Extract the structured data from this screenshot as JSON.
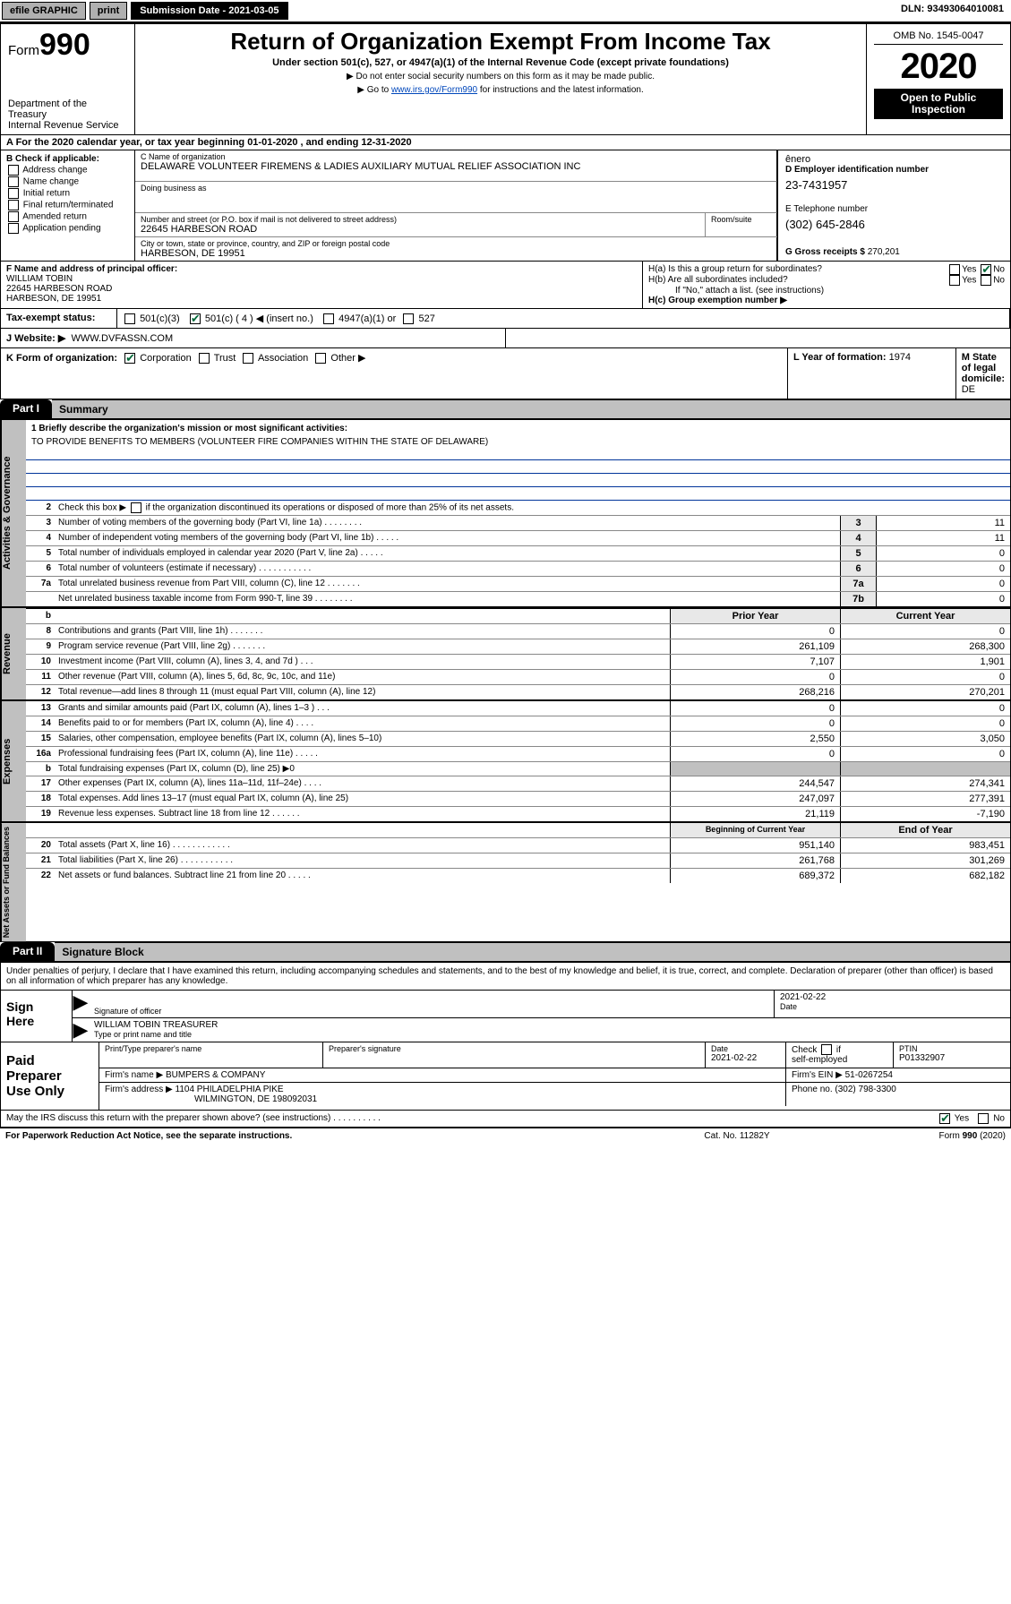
{
  "topbar": {
    "efile": "efile GRAPHIC",
    "print": "print",
    "sub_label": "Submission Date - 2021-03-05",
    "dln": "DLN: 93493064010081"
  },
  "header": {
    "form_prefix": "Form",
    "form_number": "990",
    "title": "Return of Organization Exempt From Income Tax",
    "subtitle": "Under section 501(c), 527, or 4947(a)(1) of the Internal Revenue Code (except private foundations)",
    "note1": "▶ Do not enter social security numbers on this form as it may be made public.",
    "note2_pre": "▶ Go to ",
    "note2_link": "www.irs.gov/Form990",
    "note2_post": " for instructions and the latest information.",
    "dept": "Department of the Treasury\nInternal Revenue Service",
    "omb": "OMB No. 1545-0047",
    "year": "2020",
    "inspect1": "Open to Public",
    "inspect2": "Inspection"
  },
  "lineA": "A  For the 2020 calendar year, or tax year beginning 01-01-2020     , and ending 12-31-2020",
  "boxB": {
    "hdr": "B Check if applicable:",
    "items": [
      "Address change",
      "Name change",
      "Initial return",
      "Final return/terminated",
      "Amended return",
      "Application pending"
    ]
  },
  "boxC": {
    "name_lbl": "C Name of organization",
    "name": "DELAWARE VOLUNTEER FIREMENS & LADIES AUXILIARY MUTUAL RELIEF ASSOCIATION INC",
    "dba_lbl": "Doing business as",
    "addr_lbl": "Number and street (or P.O. box if mail is not delivered to street address)",
    "addr": "22645 HARBESON ROAD",
    "room_lbl": "Room/suite",
    "city_lbl": "City or town, state or province, country, and ZIP or foreign postal code",
    "city": "HARBESON, DE  19951"
  },
  "boxD": {
    "ein_lbl": "D Employer identification number",
    "ein": "23-7431957",
    "phone_lbl": "E Telephone number",
    "phone": "(302) 645-2846",
    "gross_lbl": "G Gross receipts $ ",
    "gross": "270,201"
  },
  "boxF": {
    "lbl": "F Name and address of principal officer:",
    "name": "WILLIAM TOBIN",
    "addr": "22645 HARBESON ROAD",
    "city": "HARBESON, DE  19951"
  },
  "boxH": {
    "ha": "H(a)  Is this a group return for subordinates?",
    "hb": "H(b)  Are all subordinates included?",
    "hb_note": "If \"No,\" attach a list. (see instructions)",
    "hc": "H(c)  Group exemption number ▶",
    "yes": "Yes",
    "no": "No"
  },
  "lineI": {
    "lbl": "Tax-exempt status:",
    "c3": "501(c)(3)",
    "c_paren": "501(c) ( 4 ) ◀ (insert no.)",
    "a1": "4947(a)(1) or",
    "s527": "527"
  },
  "lineJ": {
    "lbl": "J  Website: ▶",
    "val": "WWW.DVFASSN.COM"
  },
  "lineK": {
    "lbl": "K Form of organization:",
    "corp": "Corporation",
    "trust": "Trust",
    "assoc": "Association",
    "other": "Other ▶"
  },
  "lineL": {
    "lbl": "L Year of formation: ",
    "val": "1974"
  },
  "lineM": {
    "lbl": "M State of legal domicile: ",
    "val": "DE"
  },
  "part1": {
    "tab": "Part I",
    "title": "Summary"
  },
  "summary": {
    "q1_lbl": "1  Briefly describe the organization's mission or most significant activities:",
    "q1_val": "TO PROVIDE BENEFITS TO MEMBERS (VOLUNTEER FIRE COMPANIES WITHIN THE STATE OF DELAWARE)",
    "q2": "Check this box ▶        if the organization discontinued its operations or disposed of more than 25% of its net assets.",
    "rows_simple": [
      {
        "n": "3",
        "t": "Number of voting members of the governing body (Part VI, line 1a)  .   .   .   .   .   .   .   .",
        "k": "3",
        "v": "11"
      },
      {
        "n": "4",
        "t": "Number of independent voting members of the governing body (Part VI, line 1b)   .   .   .   .   .",
        "k": "4",
        "v": "11"
      },
      {
        "n": "5",
        "t": "Total number of individuals employed in calendar year 2020 (Part V, line 2a)   .   .   .   .   .",
        "k": "5",
        "v": "0"
      },
      {
        "n": "6",
        "t": "Total number of volunteers (estimate if necessary)   .   .   .   .   .   .   .   .   .   .   .",
        "k": "6",
        "v": "0"
      },
      {
        "n": "7a",
        "t": "Total unrelated business revenue from Part VIII, column (C), line 12   .   .   .   .   .   .   .",
        "k": "7a",
        "v": "0"
      },
      {
        "n": "",
        "t": "Net unrelated business taxable income from Form 990-T, line 39   .   .   .   .   .   .   .   .",
        "k": "7b",
        "v": "0"
      }
    ],
    "pyr_hdr": {
      "py": "Prior Year",
      "cy": "Current Year"
    },
    "rev_rows": [
      {
        "n": "8",
        "t": "Contributions and grants (Part VIII, line 1h)   .   .   .   .   .   .   .",
        "py": "0",
        "cy": "0"
      },
      {
        "n": "9",
        "t": "Program service revenue (Part VIII, line 2g)   .   .   .   .   .   .   .",
        "py": "261,109",
        "cy": "268,300"
      },
      {
        "n": "10",
        "t": "Investment income (Part VIII, column (A), lines 3, 4, and 7d )   .   .   .",
        "py": "7,107",
        "cy": "1,901"
      },
      {
        "n": "11",
        "t": "Other revenue (Part VIII, column (A), lines 5, 6d, 8c, 9c, 10c, and 11e)",
        "py": "0",
        "cy": "0"
      },
      {
        "n": "12",
        "t": "Total revenue—add lines 8 through 11 (must equal Part VIII, column (A), line 12)",
        "py": "268,216",
        "cy": "270,201"
      }
    ],
    "exp_rows": [
      {
        "n": "13",
        "t": "Grants and similar amounts paid (Part IX, column (A), lines 1–3 )   .   .   .",
        "py": "0",
        "cy": "0"
      },
      {
        "n": "14",
        "t": "Benefits paid to or for members (Part IX, column (A), line 4)   .   .   .   .",
        "py": "0",
        "cy": "0"
      },
      {
        "n": "15",
        "t": "Salaries, other compensation, employee benefits (Part IX, column (A), lines 5–10)",
        "py": "2,550",
        "cy": "3,050"
      },
      {
        "n": "16a",
        "t": "Professional fundraising fees (Part IX, column (A), line 11e)   .   .   .   .   .",
        "py": "0",
        "cy": "0"
      },
      {
        "n": "b",
        "t": "Total fundraising expenses (Part IX, column (D), line 25) ▶0",
        "py": "",
        "cy": ""
      },
      {
        "n": "17",
        "t": "Other expenses (Part IX, column (A), lines 11a–11d, 11f–24e)   .   .   .   .",
        "py": "244,547",
        "cy": "274,341"
      },
      {
        "n": "18",
        "t": "Total expenses. Add lines 13–17 (must equal Part IX, column (A), line 25)",
        "py": "247,097",
        "cy": "277,391"
      },
      {
        "n": "19",
        "t": "Revenue less expenses. Subtract line 18 from line 12   .   .   .   .   .   .",
        "py": "21,119",
        "cy": "-7,190"
      }
    ],
    "bal_hdr": {
      "py": "Beginning of Current Year",
      "cy": "End of Year"
    },
    "bal_rows": [
      {
        "n": "20",
        "t": "Total assets (Part X, line 16)   .   .   .   .   .   .   .   .   .   .   .   .",
        "py": "951,140",
        "cy": "983,451"
      },
      {
        "n": "21",
        "t": "Total liabilities (Part X, line 26)   .   .   .   .   .   .   .   .   .   .   .",
        "py": "261,768",
        "cy": "301,269"
      },
      {
        "n": "22",
        "t": "Net assets or fund balances. Subtract line 21 from line 20   .   .   .   .   .",
        "py": "689,372",
        "cy": "682,182"
      }
    ],
    "vtabs": {
      "g": "Activities & Governance",
      "r": "Revenue",
      "e": "Expenses",
      "n": "Net Assets or Fund Balances"
    }
  },
  "part2": {
    "tab": "Part II",
    "title": "Signature Block",
    "decl": "Under penalties of perjury, I declare that I have examined this return, including accompanying schedules and statements, and to the best of my knowledge and belief, it is true, correct, and complete. Declaration of preparer (other than officer) is based on all information of which preparer has any knowledge."
  },
  "sign": {
    "here": "Sign Here",
    "sig_officer_lbl": "Signature of officer",
    "date": "2021-02-22",
    "date_lbl": "Date",
    "officer": "WILLIAM TOBIN TREASURER",
    "officer_lbl": "Type or print name and title"
  },
  "paid": {
    "lbl": "Paid Preparer Use Only",
    "h1": "Print/Type preparer's name",
    "h2": "Preparer's signature",
    "h3": "Date",
    "h3v": "2021-02-22",
    "h4": "Check        if self-employed",
    "h5": "PTIN",
    "h5v": "P01332907",
    "firm_lbl": "Firm's name    ▶",
    "firm": "BUMPERS & COMPANY",
    "ein_lbl": "Firm's EIN ▶",
    "ein": "51-0267254",
    "addr_lbl": "Firm's address ▶",
    "addr1": "1104 PHILADELPHIA PIKE",
    "addr2": "WILMINGTON, DE  198092031",
    "phone_lbl": "Phone no.",
    "phone": "(302) 798-3300"
  },
  "discuss": {
    "q": "May the IRS discuss this return with the preparer shown above? (see instructions)   .   .   .   .   .   .   .   .   .   .",
    "yes": "Yes",
    "no": "No"
  },
  "footer": {
    "pra": "For Paperwork Reduction Act Notice, see the separate instructions.",
    "cat": "Cat. No. 11282Y",
    "form": "Form 990 (2020)"
  }
}
